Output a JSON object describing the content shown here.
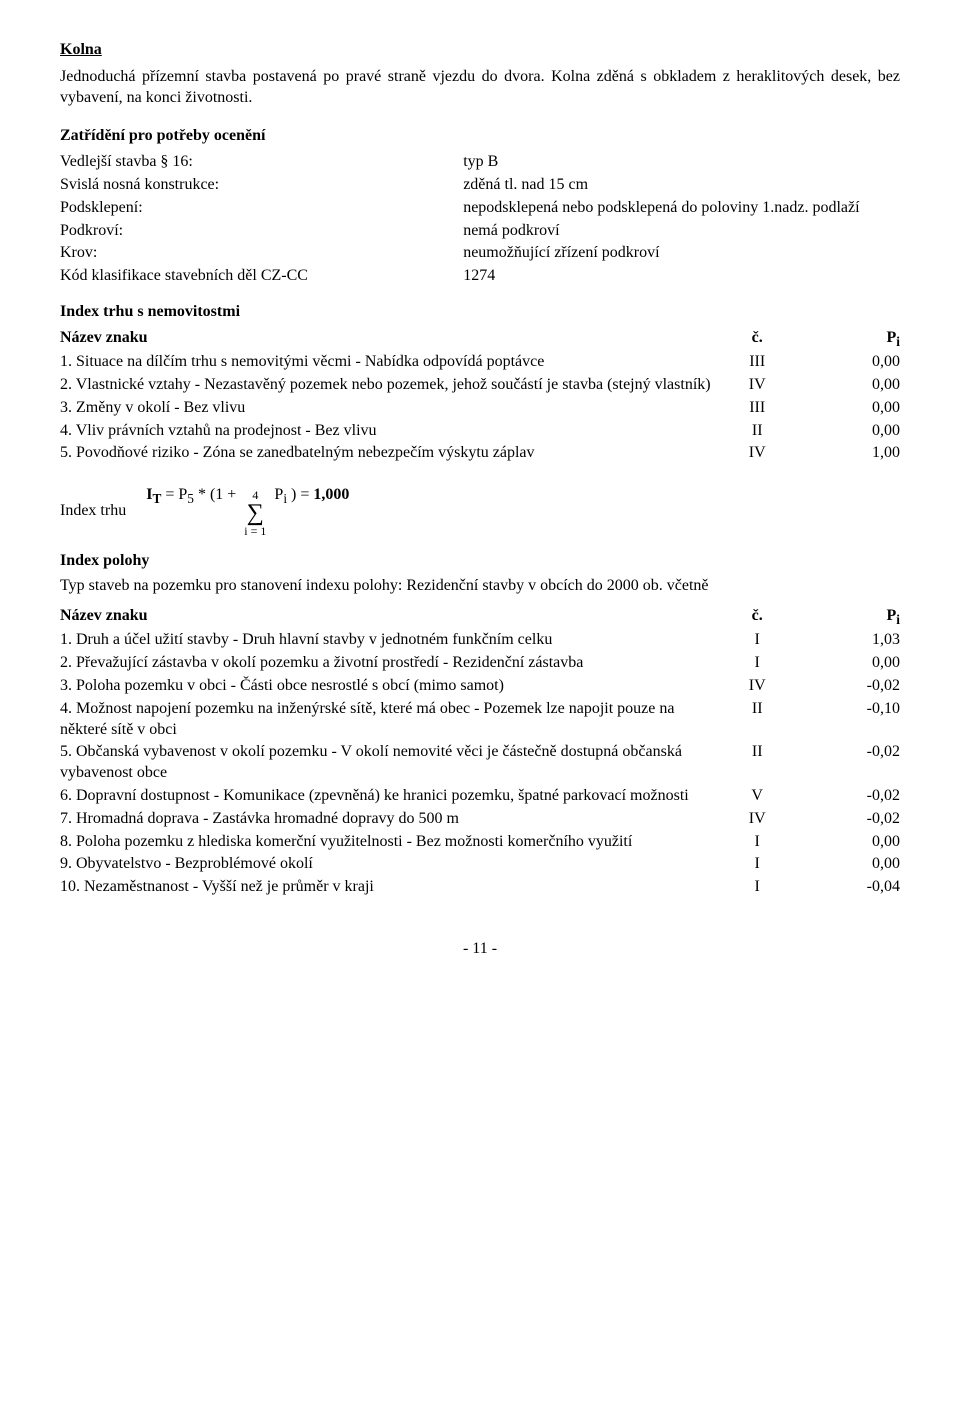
{
  "title": "Kolna",
  "intro_para": "Jednoduchá přízemní stavba postavená po pravé straně vjezdu do dvora. Kolna zděná s obkladem z heraklitových desek, bez vybavení, na konci životnosti.",
  "classification_heading": "Zatřídění pro potřeby ocenění",
  "kv": [
    {
      "key": "Vedlejší stavba § 16:",
      "val": "typ B"
    },
    {
      "key": "Svislá nosná konstrukce:",
      "val": "zděná tl. nad 15 cm"
    },
    {
      "key": "Podsklepení:",
      "val": "nepodsklepená nebo podsklepená do poloviny 1.nadz. podlaží"
    },
    {
      "key": "Podkroví:",
      "val": "nemá podkroví"
    },
    {
      "key": "Krov:",
      "val": "neumožňující zřízení podkroví"
    },
    {
      "key": "Kód klasifikace stavebních děl CZ-CC",
      "val": " 1274"
    }
  ],
  "index_trhu_heading": "Index trhu s nemovitostmi",
  "columns": {
    "name": "Název znaku",
    "code": "č.",
    "val": "Pi"
  },
  "col_val_sub": "i",
  "col_val_base": "P",
  "trhu_rows": [
    {
      "name": "1. Situace na dílčím trhu s nemovitými věcmi - Nabídka odpovídá poptávce",
      "code": "III",
      "val": "0,00"
    },
    {
      "name": "2. Vlastnické vztahy - Nezastavěný pozemek nebo pozemek, jehož součástí je stavba (stejný vlastník)",
      "code": "IV",
      "val": "0,00"
    },
    {
      "name": "3. Změny v okolí - Bez vlivu",
      "code": "III",
      "val": "0,00"
    },
    {
      "name": "4. Vliv právních vztahů na prodejnost - Bez vlivu",
      "code": "II",
      "val": "0,00"
    },
    {
      "name": "5. Povodňové riziko - Zóna se zanedbatelným nebezpečím výskytu záplav",
      "code": "IV",
      "val": "1,00"
    }
  ],
  "formula": {
    "label": "Index trhu",
    "prefix": "IT = P5 * (1 + ",
    "sum_top": "4",
    "sum_bot": "i = 1",
    "suffix": " Pi) = ",
    "result": "1,000",
    "I_label": "I",
    "T_sub": "T",
    "P5_label": "P",
    "five_sub": "5",
    "Pi_label": "P",
    "i_sub": "i"
  },
  "index_polohy_heading": "Index polohy",
  "typ_staveb_para": "Typ staveb na pozemku pro stanovení indexu polohy: Rezidenční stavby v obcích do 2000 ob. včetně",
  "polohy_rows": [
    {
      "name": "1. Druh a účel užití stavby - Druh hlavní stavby v jednotném funkčním celku",
      "code": "I",
      "val": "1,03"
    },
    {
      "name": "2. Převažující zástavba v okolí pozemku a životní prostředí - Rezidenční zástavba",
      "code": "I",
      "val": "0,00"
    },
    {
      "name": "3. Poloha pozemku v obci - Části obce nesrostlé s obcí (mimo samot)",
      "code": "IV",
      "val": "-0,02"
    },
    {
      "name": "4. Možnost napojení pozemku na inženýrské sítě, které má obec - Pozemek lze napojit pouze na některé sítě v obci",
      "code": "II",
      "val": "-0,10"
    },
    {
      "name": "5. Občanská vybavenost v okolí pozemku - V okolí nemovité věci je částečně dostupná občanská vybavenost obce",
      "code": "II",
      "val": "-0,02"
    },
    {
      "name": "6. Dopravní dostupnost - Komunikace (zpevněná) ke hranici pozemku, špatné parkovací možnosti",
      "code": "V",
      "val": "-0,02"
    },
    {
      "name": "7. Hromadná doprava - Zastávka hromadné dopravy do 500 m",
      "code": "IV",
      "val": "-0,02"
    },
    {
      "name": "8. Poloha pozemku z hlediska komerční využitelnosti - Bez možnosti komerčního využití",
      "code": "I",
      "val": "0,00"
    },
    {
      "name": "9. Obyvatelstvo - Bezproblémové okolí",
      "code": "I",
      "val": "0,00"
    },
    {
      "name": "10. Nezaměstnanost - Vyšší než je průměr v kraji",
      "code": "I",
      "val": "-0,04"
    }
  ],
  "page_number": "- 11 -"
}
